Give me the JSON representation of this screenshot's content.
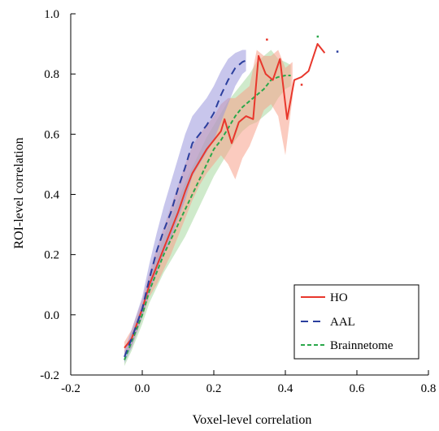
{
  "chart_data": {
    "type": "line",
    "xlabel": "Voxel-level correlation",
    "ylabel": "ROI-level correlation",
    "xlim": [
      -0.2,
      0.8
    ],
    "ylim": [
      -0.2,
      1.0
    ],
    "xticks": [
      -0.2,
      0.0,
      0.2,
      0.4,
      0.6,
      0.8
    ],
    "yticks": [
      -0.2,
      0.0,
      0.2,
      0.4,
      0.6,
      0.8,
      1.0
    ],
    "xtick_labels": [
      "-0.2",
      "0.0",
      "0.2",
      "0.4",
      "0.6",
      "0.8"
    ],
    "ytick_labels": [
      "-0.2",
      "0.0",
      "0.2",
      "0.4",
      "0.6",
      "0.8",
      "1.0"
    ],
    "legend_position": "bottom-right",
    "grid": false,
    "series": [
      {
        "name": "HO",
        "color": "#e8372c",
        "band_color": "#f7a08a",
        "dash": "solid",
        "points": [
          [
            -0.05,
            -0.11
          ],
          [
            -0.03,
            -0.08
          ],
          [
            0.0,
            0.02
          ],
          [
            0.02,
            0.1
          ],
          [
            0.04,
            0.16
          ],
          [
            0.06,
            0.22
          ],
          [
            0.08,
            0.28
          ],
          [
            0.1,
            0.34
          ],
          [
            0.12,
            0.41
          ],
          [
            0.14,
            0.47
          ],
          [
            0.16,
            0.51
          ],
          [
            0.18,
            0.55
          ],
          [
            0.2,
            0.58
          ],
          [
            0.22,
            0.61
          ],
          [
            0.23,
            0.65
          ],
          [
            0.25,
            0.57
          ],
          [
            0.27,
            0.64
          ],
          [
            0.29,
            0.66
          ],
          [
            0.31,
            0.65
          ],
          [
            0.325,
            0.86
          ],
          [
            0.345,
            0.8
          ],
          [
            0.365,
            0.78
          ],
          [
            0.385,
            0.85
          ],
          [
            0.405,
            0.65
          ],
          [
            0.425,
            0.78
          ],
          [
            0.445,
            0.79
          ],
          [
            0.465,
            0.81
          ],
          [
            0.49,
            0.9
          ],
          [
            0.51,
            0.87
          ]
        ],
        "upper": [
          [
            -0.05,
            -0.09
          ],
          [
            -0.03,
            -0.05
          ],
          [
            0.0,
            0.05
          ],
          [
            0.02,
            0.14
          ],
          [
            0.04,
            0.22
          ],
          [
            0.06,
            0.29
          ],
          [
            0.08,
            0.36
          ],
          [
            0.1,
            0.43
          ],
          [
            0.12,
            0.5
          ],
          [
            0.14,
            0.56
          ],
          [
            0.16,
            0.6
          ],
          [
            0.18,
            0.63
          ],
          [
            0.2,
            0.66
          ],
          [
            0.22,
            0.7
          ],
          [
            0.24,
            0.72
          ],
          [
            0.26,
            0.72
          ],
          [
            0.28,
            0.74
          ],
          [
            0.3,
            0.76
          ],
          [
            0.32,
            0.88
          ],
          [
            0.34,
            0.86
          ],
          [
            0.36,
            0.86
          ],
          [
            0.38,
            0.88
          ],
          [
            0.4,
            0.82
          ],
          [
            0.42,
            0.84
          ]
        ],
        "lower": [
          [
            -0.05,
            -0.13
          ],
          [
            -0.03,
            -0.11
          ],
          [
            0.0,
            -0.01
          ],
          [
            0.02,
            0.06
          ],
          [
            0.04,
            0.1
          ],
          [
            0.06,
            0.15
          ],
          [
            0.08,
            0.2
          ],
          [
            0.1,
            0.26
          ],
          [
            0.12,
            0.32
          ],
          [
            0.14,
            0.38
          ],
          [
            0.16,
            0.43
          ],
          [
            0.18,
            0.47
          ],
          [
            0.2,
            0.5
          ],
          [
            0.22,
            0.53
          ],
          [
            0.24,
            0.5
          ],
          [
            0.26,
            0.45
          ],
          [
            0.28,
            0.52
          ],
          [
            0.3,
            0.56
          ],
          [
            0.32,
            0.62
          ],
          [
            0.34,
            0.68
          ],
          [
            0.36,
            0.7
          ],
          [
            0.38,
            0.66
          ],
          [
            0.4,
            0.53
          ],
          [
            0.42,
            0.72
          ]
        ],
        "markers": [
          [
            0.348,
            0.915
          ],
          [
            0.445,
            0.765
          ]
        ]
      },
      {
        "name": "AAL",
        "color": "#2b3f9e",
        "band_color": "#9a97dd",
        "dash": "long",
        "points": [
          [
            -0.05,
            -0.14
          ],
          [
            -0.03,
            -0.08
          ],
          [
            0.0,
            0.02
          ],
          [
            0.02,
            0.12
          ],
          [
            0.04,
            0.21
          ],
          [
            0.06,
            0.28
          ],
          [
            0.08,
            0.34
          ],
          [
            0.1,
            0.42
          ],
          [
            0.12,
            0.49
          ],
          [
            0.14,
            0.57
          ],
          [
            0.16,
            0.6
          ],
          [
            0.18,
            0.63
          ],
          [
            0.2,
            0.67
          ],
          [
            0.22,
            0.73
          ],
          [
            0.24,
            0.78
          ],
          [
            0.26,
            0.82
          ],
          [
            0.28,
            0.84
          ],
          [
            0.29,
            0.845
          ]
        ],
        "upper": [
          [
            -0.05,
            -0.12
          ],
          [
            -0.03,
            -0.05
          ],
          [
            0.0,
            0.06
          ],
          [
            0.02,
            0.17
          ],
          [
            0.04,
            0.27
          ],
          [
            0.06,
            0.36
          ],
          [
            0.08,
            0.44
          ],
          [
            0.1,
            0.52
          ],
          [
            0.12,
            0.6
          ],
          [
            0.14,
            0.66
          ],
          [
            0.16,
            0.69
          ],
          [
            0.18,
            0.72
          ],
          [
            0.2,
            0.76
          ],
          [
            0.22,
            0.81
          ],
          [
            0.24,
            0.85
          ],
          [
            0.26,
            0.87
          ],
          [
            0.28,
            0.88
          ],
          [
            0.29,
            0.88
          ]
        ],
        "lower": [
          [
            -0.05,
            -0.16
          ],
          [
            -0.03,
            -0.11
          ],
          [
            0.0,
            -0.01
          ],
          [
            0.02,
            0.07
          ],
          [
            0.04,
            0.14
          ],
          [
            0.06,
            0.2
          ],
          [
            0.08,
            0.25
          ],
          [
            0.1,
            0.32
          ],
          [
            0.12,
            0.38
          ],
          [
            0.14,
            0.46
          ],
          [
            0.16,
            0.5
          ],
          [
            0.18,
            0.54
          ],
          [
            0.2,
            0.58
          ],
          [
            0.22,
            0.64
          ],
          [
            0.24,
            0.7
          ],
          [
            0.26,
            0.76
          ],
          [
            0.28,
            0.8
          ],
          [
            0.29,
            0.81
          ]
        ],
        "markers": [
          [
            0.545,
            0.875
          ]
        ]
      },
      {
        "name": "Brainnetome",
        "color": "#2aa84a",
        "band_color": "#a8d8a0",
        "dash": "short",
        "points": [
          [
            -0.05,
            -0.15
          ],
          [
            -0.03,
            -0.09
          ],
          [
            0.0,
            0.0
          ],
          [
            0.02,
            0.08
          ],
          [
            0.04,
            0.14
          ],
          [
            0.06,
            0.2
          ],
          [
            0.08,
            0.25
          ],
          [
            0.1,
            0.3
          ],
          [
            0.12,
            0.35
          ],
          [
            0.14,
            0.4
          ],
          [
            0.16,
            0.45
          ],
          [
            0.18,
            0.5
          ],
          [
            0.2,
            0.55
          ],
          [
            0.22,
            0.58
          ],
          [
            0.24,
            0.62
          ],
          [
            0.26,
            0.66
          ],
          [
            0.28,
            0.69
          ],
          [
            0.3,
            0.71
          ],
          [
            0.32,
            0.73
          ],
          [
            0.34,
            0.75
          ],
          [
            0.36,
            0.78
          ],
          [
            0.38,
            0.79
          ],
          [
            0.4,
            0.795
          ],
          [
            0.415,
            0.795
          ]
        ],
        "upper": [
          [
            -0.05,
            -0.13
          ],
          [
            -0.03,
            -0.06
          ],
          [
            0.0,
            0.03
          ],
          [
            0.02,
            0.12
          ],
          [
            0.04,
            0.19
          ],
          [
            0.06,
            0.26
          ],
          [
            0.08,
            0.32
          ],
          [
            0.1,
            0.38
          ],
          [
            0.12,
            0.44
          ],
          [
            0.14,
            0.49
          ],
          [
            0.16,
            0.54
          ],
          [
            0.18,
            0.59
          ],
          [
            0.2,
            0.63
          ],
          [
            0.22,
            0.67
          ],
          [
            0.24,
            0.71
          ],
          [
            0.26,
            0.74
          ],
          [
            0.28,
            0.77
          ],
          [
            0.3,
            0.8
          ],
          [
            0.32,
            0.84
          ],
          [
            0.34,
            0.86
          ],
          [
            0.36,
            0.88
          ],
          [
            0.38,
            0.85
          ],
          [
            0.4,
            0.84
          ],
          [
            0.415,
            0.83
          ]
        ],
        "lower": [
          [
            -0.05,
            -0.17
          ],
          [
            -0.03,
            -0.12
          ],
          [
            0.0,
            -0.03
          ],
          [
            0.02,
            0.04
          ],
          [
            0.04,
            0.09
          ],
          [
            0.06,
            0.14
          ],
          [
            0.08,
            0.18
          ],
          [
            0.1,
            0.22
          ],
          [
            0.12,
            0.26
          ],
          [
            0.14,
            0.31
          ],
          [
            0.16,
            0.36
          ],
          [
            0.18,
            0.41
          ],
          [
            0.2,
            0.46
          ],
          [
            0.22,
            0.5
          ],
          [
            0.24,
            0.54
          ],
          [
            0.26,
            0.58
          ],
          [
            0.28,
            0.61
          ],
          [
            0.3,
            0.63
          ],
          [
            0.32,
            0.64
          ],
          [
            0.34,
            0.66
          ],
          [
            0.36,
            0.68
          ],
          [
            0.38,
            0.72
          ],
          [
            0.4,
            0.75
          ],
          [
            0.415,
            0.76
          ]
        ],
        "markers": [
          [
            0.49,
            0.925
          ]
        ]
      }
    ]
  }
}
